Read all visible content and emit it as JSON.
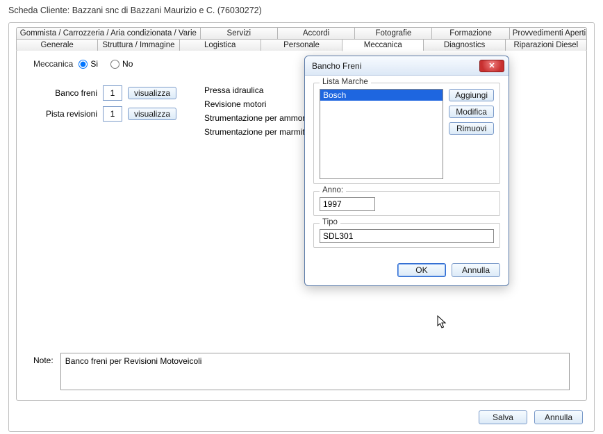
{
  "title": "Scheda Cliente: Bazzani snc di Bazzani Maurizio e C. (76030272)",
  "tabs_row1": [
    "Gommista / Carrozzeria / Aria condizionata / Varie",
    "Servizi",
    "Accordi",
    "Fotografie",
    "Formazione",
    "Provvedimenti Aperti"
  ],
  "tabs_row2": [
    "Generale",
    "Struttura / Immagine",
    "Logistica",
    "Personale",
    "Meccanica",
    "Diagnostics",
    "Riparazioni Diesel"
  ],
  "active_tab": "Meccanica",
  "meccanica": {
    "label": "Meccanica",
    "si": "Si",
    "no": "No",
    "selected": "si"
  },
  "left": {
    "banco_freni_label": "Banco freni",
    "banco_freni_value": "1",
    "pista_revisioni_label": "Pista revisioni",
    "pista_revisioni_value": "1",
    "visualizza": "visualizza"
  },
  "right_rows": [
    {
      "label": "Pressa idraulica",
      "val": "si"
    },
    {
      "label": "Revisione motori",
      "val": "si"
    },
    {
      "label": "Strumentazione per ammortizzatori",
      "val": "si"
    },
    {
      "label": "Strumentazione per marmitte",
      "val": "si"
    }
  ],
  "sino": {
    "si": "Si",
    "no": "No"
  },
  "note_label": "Note:",
  "note_value": "Banco freni per Revisioni Motoveicoli",
  "footer": {
    "salva": "Salva",
    "annulla": "Annulla"
  },
  "dialog": {
    "title": "Bancho Freni",
    "lista_marche_label": "Lista Marche",
    "list": [
      "Bosch"
    ],
    "selected_index": 0,
    "buttons": {
      "aggiungi": "Aggiungi",
      "modifica": "Modifica",
      "rimuovi": "Rimuovi"
    },
    "anno_label": "Anno:",
    "anno_value": "1997",
    "tipo_label": "Tipo",
    "tipo_value": "SDL301",
    "ok": "OK",
    "annulla": "Annulla"
  }
}
